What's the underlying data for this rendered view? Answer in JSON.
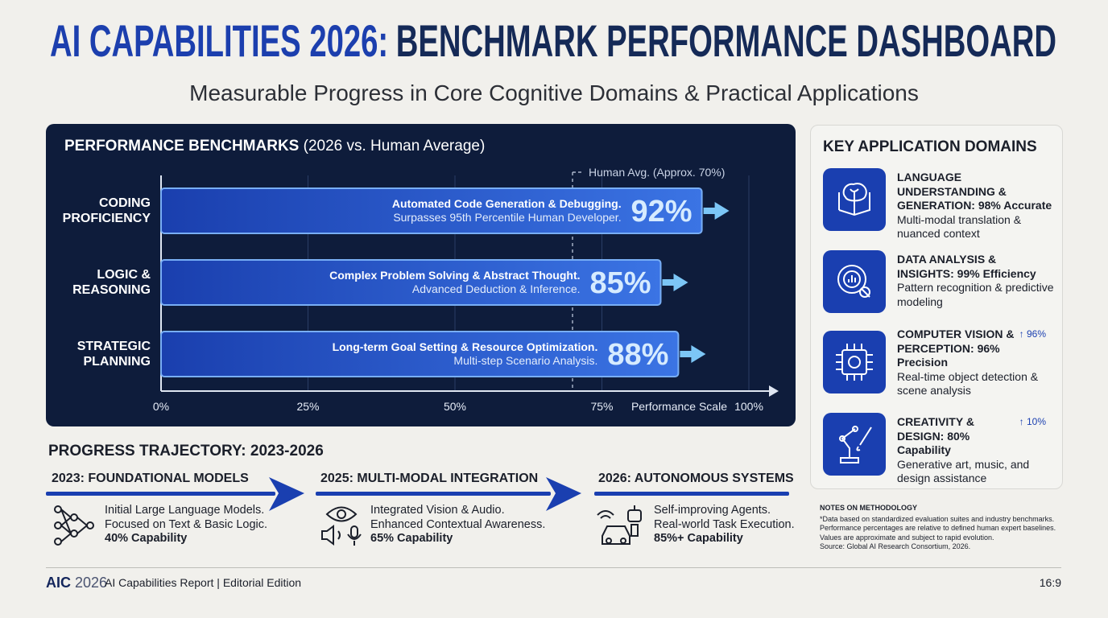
{
  "header": {
    "title_accent": "AI CAPABILITIES 2026:",
    "title_main": "BENCHMARK PERFORMANCE DASHBOARD",
    "subtitle": "Measurable Progress in Core Cognitive Domains & Practical Applications"
  },
  "chart_data": {
    "type": "bar",
    "orientation": "horizontal",
    "title_bold": "PERFORMANCE BENCHMARKS",
    "title_rest": "(2026 vs. Human Average)",
    "categories": [
      "CODING PROFICIENCY",
      "LOGIC & REASONING",
      "STRATEGIC PLANNING"
    ],
    "values": [
      92,
      85,
      88
    ],
    "value_labels": [
      "92%",
      "85%",
      "88%"
    ],
    "descriptions": [
      [
        "Automated Code Generation & Debugging.",
        "Surpasses 95th Percentile Human Developer."
      ],
      [
        "Complex Problem Solving & Abstract Thought.",
        "Advanced Deduction & Inference."
      ],
      [
        "Long-term Goal Setting & Resource Optimization.",
        "Multi-step Scenario Analysis."
      ]
    ],
    "color": "#1f4fc4",
    "xlim": [
      0,
      100
    ],
    "xticks": [
      {
        "value": 0,
        "label": "0%"
      },
      {
        "value": 25,
        "label": "25%"
      },
      {
        "value": 50,
        "label": "50%"
      },
      {
        "value": 75,
        "label": "75%"
      },
      {
        "value": 100,
        "label": "100%"
      }
    ],
    "xlabel": "Performance Scale",
    "grid": true,
    "reference": {
      "label": "Human Avg. (Approx. 70%)",
      "value": 70
    }
  },
  "domains": {
    "title": "KEY APPLICATION DOMAINS",
    "items": [
      {
        "title": "LANGUAGE UNDERSTANDING & GENERATION: 98% Accurate",
        "description": "Multi-modal translation & nuanced context"
      },
      {
        "title": "DATA ANALYSIS & INSIGHTS: 99% Efficiency",
        "description": "Pattern recognition & predictive modeling"
      },
      {
        "title": "COMPUTER VISION & PERCEPTION: 96% Precision",
        "description": "Real-time object detection & scene analysis",
        "trend": "↑ 96%"
      },
      {
        "title": "CREATIVITY & DESIGN: 80% Capability",
        "description": "Generative art, music, and design assistance",
        "trend": "↑ 10%"
      }
    ]
  },
  "progress": {
    "title": "PROGRESS TRAJECTORY: 2023-2026",
    "stages": [
      {
        "heading": "2023: FOUNDATIONAL MODELS",
        "lines": [
          "Initial Large Language Models.",
          "Focused on Text & Basic Logic."
        ],
        "capability": "40% Capability"
      },
      {
        "heading": "2025: MULTI-MODAL INTEGRATION",
        "lines": [
          "Integrated Vision & Audio.",
          "Enhanced Contextual Awareness."
        ],
        "capability": "65% Capability"
      },
      {
        "heading": "2026: AUTONOMOUS SYSTEMS",
        "lines": [
          "Self-improving Agents.",
          "Real-world Task Execution."
        ],
        "capability": "85%+ Capability"
      }
    ]
  },
  "notes": {
    "heading": "NOTES ON METHODOLOGY",
    "lines": [
      "*Data based on standardized evaluation suites and industry benchmarks.",
      "Performance percentages are relative to defined human expert baselines.",
      "Values are approximate and subject to rapid evolution.",
      "Source: Global AI Research Consortium, 2026."
    ]
  },
  "footer": {
    "brand": "AIC",
    "year": "2026",
    "text": "AI Capabilities Report | Editorial Edition",
    "ratio": "16:9"
  }
}
